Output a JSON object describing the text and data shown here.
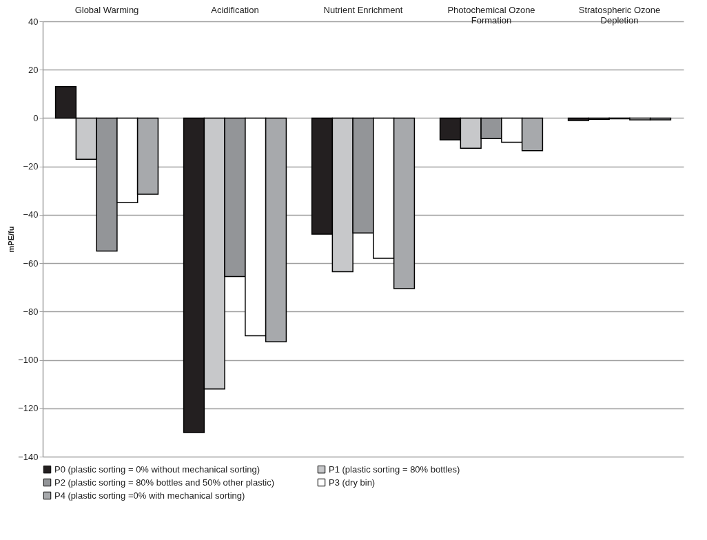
{
  "chart_data": {
    "type": "bar",
    "ylabel": "mPE/fu",
    "categories": [
      "Global Warming",
      "Acidification",
      "Nutrient Enrichment",
      "Photochemical Ozone Formation",
      "Stratospheric Ozone Depletion"
    ],
    "series": [
      {
        "name": "P0 (plastic sorting = 0% without mechanical sorting)",
        "color": "#231f20",
        "values": [
          13,
          -130,
          -48,
          -9,
          -1
        ]
      },
      {
        "name": "P1 (plastic sorting = 80% bottles)",
        "color": "#c7c8ca",
        "values": [
          -17,
          -112,
          -63.5,
          -12.5,
          -0.5
        ]
      },
      {
        "name": "P2 (plastic sorting = 80% bottles and 50% other plastic)",
        "color": "#939598",
        "values": [
          -55,
          -65.5,
          -47.5,
          -8.5,
          -0.3
        ]
      },
      {
        "name": "P3 (dry bin)",
        "color": "#ffffff",
        "values": [
          -35,
          -90,
          -58,
          -10,
          -0.7
        ]
      },
      {
        "name": "P4 (plastic sorting =0% with mechanical sorting)",
        "color": "#a7a9ac",
        "values": [
          -31.5,
          -92.5,
          -70.5,
          -13.5,
          -0.7
        ]
      }
    ],
    "ylim": [
      -140,
      40
    ],
    "yticks": [
      -140,
      -120,
      -100,
      -80,
      -60,
      -40,
      -20,
      0,
      20,
      40
    ],
    "grid": "y",
    "legend": "bottom"
  }
}
